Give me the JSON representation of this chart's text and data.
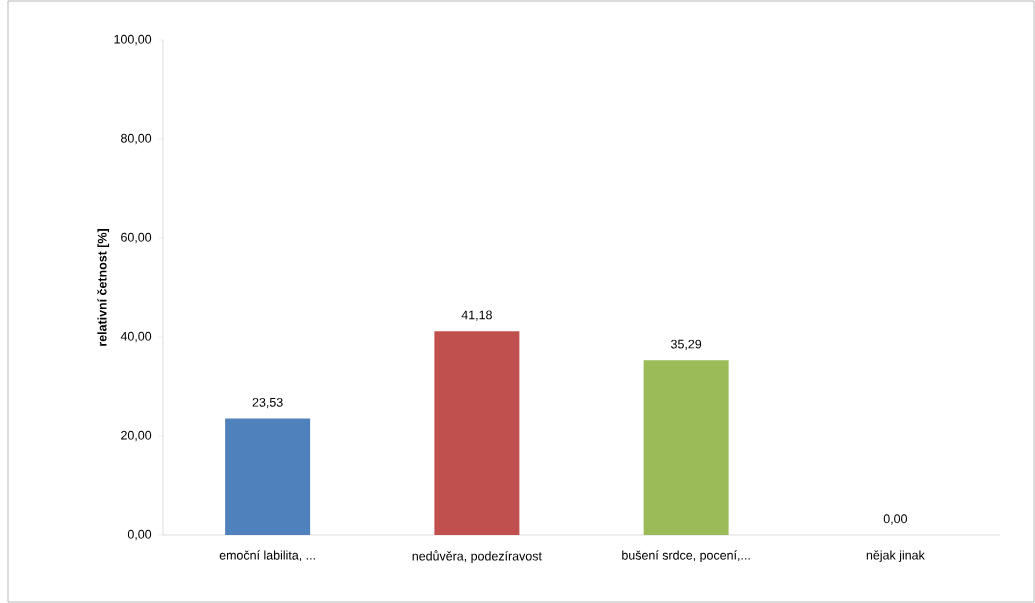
{
  "chart_data": {
    "type": "bar",
    "ylabel": "relativní četnost [%]",
    "categories": [
      "emoční labilita, ...",
      "nedůvěra, podezíravost",
      "bušení srdce, pocení,...",
      "nějak jinak"
    ],
    "values": [
      23.53,
      41.18,
      35.29,
      0.0
    ],
    "colors": [
      "#4f81bd",
      "#c0504d",
      "#9bbb59",
      "#8064a2"
    ],
    "value_labels": [
      "23,53",
      "41,18",
      "35,29",
      "0,00"
    ],
    "ylim": [
      0,
      100
    ],
    "yticks": [
      {
        "value": 0,
        "label": "0,00"
      },
      {
        "value": 20,
        "label": "20,00"
      },
      {
        "value": 40,
        "label": "40,00"
      },
      {
        "value": 60,
        "label": "60,00"
      },
      {
        "value": 80,
        "label": "80,00"
      },
      {
        "value": 100,
        "label": "100,00"
      }
    ],
    "grid": false,
    "legend": false
  }
}
